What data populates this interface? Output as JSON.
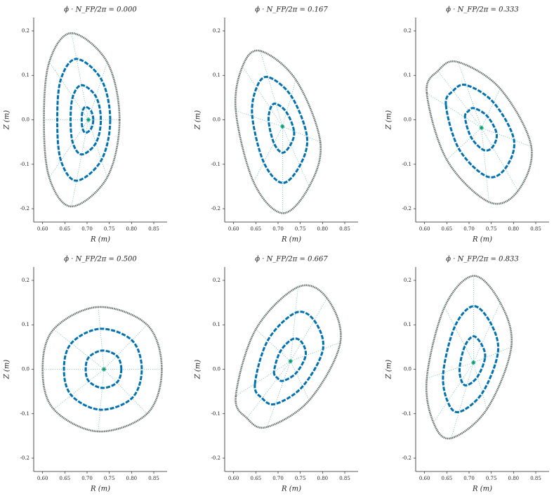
{
  "chart_data": [
    {
      "type": "poincare",
      "title": "ϕ · N_FP/2π = 0.000",
      "x_label": "R (m)",
      "y_label": "Z (m)",
      "xlim": [
        0.58,
        0.88
      ],
      "ylim": [
        -0.23,
        0.23
      ],
      "xticks": [
        {
          "value": 0.6,
          "label": "0.60"
        },
        0.65,
        {
          "value": 0.7,
          "label": "0.70"
        },
        0.75,
        {
          "value": 0.8,
          "label": "0.80"
        },
        0.85
      ],
      "yticks": [
        -0.2,
        -0.1,
        {
          "value": 0,
          "label": "0.0"
        },
        0.1,
        0.2
      ],
      "surfaces": [
        {
          "color": "#5e6a64",
          "x": [
            0.773,
            0.745,
            0.665,
            0.615,
            0.603,
            0.615,
            0.665,
            0.745
          ],
          "y": [
            0,
            0.13,
            0.195,
            0.13,
            0,
            -0.13,
            -0.195,
            -0.13
          ]
        },
        {
          "color": "#0072b2",
          "x": [
            0.752,
            0.732,
            0.676,
            0.641,
            0.633,
            0.641,
            0.676,
            0.732
          ],
          "y": [
            0,
            0.091,
            0.137,
            0.091,
            0,
            -0.091,
            -0.137,
            -0.091
          ]
        },
        {
          "color": "#0072b2",
          "x": [
            0.731,
            0.72,
            0.688,
            0.668,
            0.663,
            0.668,
            0.688,
            0.72
          ],
          "y": [
            0,
            0.052,
            0.078,
            0.052,
            0,
            -0.052,
            -0.078,
            -0.052
          ]
        },
        {
          "color": "#0072b2",
          "x": [
            0.714,
            0.709,
            0.697,
            0.69,
            0.688,
            0.69,
            0.697,
            0.709
          ],
          "y": [
            0,
            0.02,
            0.029,
            0.02,
            0,
            -0.02,
            -0.029,
            -0.02
          ]
        }
      ],
      "axis": {
        "color": "#009e73",
        "x": 0.703,
        "y": 0
      }
    },
    {
      "type": "poincare",
      "title": "ϕ · N_FP/2π = 0.167",
      "x_label": "R (m)",
      "y_label": "Z (m)",
      "xlim": [
        0.58,
        0.88
      ],
      "ylim": [
        -0.23,
        0.23
      ],
      "xticks": [
        {
          "value": 0.6,
          "label": "0.60"
        },
        0.65,
        {
          "value": 0.7,
          "label": "0.70"
        },
        0.75,
        {
          "value": 0.8,
          "label": "0.80"
        },
        0.85
      ],
      "yticks": [
        -0.2,
        -0.1,
        {
          "value": 0,
          "label": "0.0"
        },
        0.1,
        0.2
      ],
      "surfaces": [
        {
          "color": "#5e6a64",
          "x": [
            0.795,
            0.77,
            0.71,
            0.645,
            0.605,
            0.62,
            0.66,
            0.74
          ],
          "y": [
            -0.05,
            -0.15,
            -0.21,
            -0.14,
            0.02,
            0.12,
            0.155,
            0.09
          ]
        },
        {
          "color": "#0072b2",
          "x": [
            0.765,
            0.749,
            0.71,
            0.668,
            0.642,
            0.652,
            0.678,
            0.73
          ],
          "y": [
            -0.038,
            -0.103,
            -0.142,
            -0.096,
            0.008,
            0.073,
            0.096,
            0.053
          ]
        },
        {
          "color": "#0072b2",
          "x": [
            0.736,
            0.728,
            0.71,
            0.691,
            0.679,
            0.683,
            0.695,
            0.719
          ],
          "y": [
            -0.026,
            -0.056,
            -0.074,
            -0.053,
            -0.005,
            0.026,
            0.036,
            0.017
          ]
        }
      ],
      "axis": {
        "color": "#009e73",
        "x": 0.71,
        "y": -0.015
      }
    },
    {
      "type": "poincare",
      "title": "ϕ · N_FP/2π = 0.333",
      "x_label": "R (m)",
      "y_label": "Z (m)",
      "xlim": [
        0.58,
        0.88
      ],
      "ylim": [
        -0.23,
        0.23
      ],
      "xticks": [
        {
          "value": 0.6,
          "label": "0.60"
        },
        0.65,
        {
          "value": 0.7,
          "label": "0.70"
        },
        0.75,
        {
          "value": 0.8,
          "label": "0.80"
        },
        0.85
      ],
      "yticks": [
        -0.2,
        -0.1,
        {
          "value": 0,
          "label": "0.0"
        },
        0.1,
        0.2
      ],
      "surfaces": [
        {
          "color": "#5e6a64",
          "x": [
            0.605,
            0.63,
            0.675,
            0.77,
            0.84,
            0.81,
            0.745,
            0.65
          ],
          "y": [
            0.06,
            0.11,
            0.13,
            0.07,
            -0.06,
            -0.16,
            -0.185,
            -0.09
          ]
        },
        {
          "color": "#0072b2",
          "x": [
            0.648,
            0.664,
            0.694,
            0.755,
            0.801,
            0.781,
            0.739,
            0.677
          ],
          "y": [
            0.033,
            0.065,
            0.078,
            0.039,
            -0.045,
            -0.11,
            -0.127,
            -0.065
          ]
        },
        {
          "color": "#0072b2",
          "x": [
            0.691,
            0.699,
            0.712,
            0.741,
            0.762,
            0.753,
            0.733,
            0.705
          ],
          "y": [
            0.005,
            0.02,
            0.026,
            0.008,
            -0.031,
            -0.061,
            -0.068,
            -0.04
          ]
        }
      ],
      "axis": {
        "color": "#009e73",
        "x": 0.728,
        "y": -0.018
      }
    },
    {
      "type": "poincare",
      "title": "ϕ · N_FP/2π = 0.500",
      "x_label": "R (m)",
      "y_label": "Z (m)",
      "xlim": [
        0.58,
        0.88
      ],
      "ylim": [
        -0.23,
        0.23
      ],
      "xticks": [
        {
          "value": 0.6,
          "label": "0.60"
        },
        0.65,
        {
          "value": 0.7,
          "label": "0.70"
        },
        0.75,
        {
          "value": 0.8,
          "label": "0.80"
        },
        0.85
      ],
      "yticks": [
        -0.2,
        -0.1,
        {
          "value": 0,
          "label": "0.0"
        },
        0.1,
        0.2
      ],
      "surfaces": [
        {
          "color": "#5e6a64",
          "x": [
            0.868,
            0.835,
            0.725,
            0.625,
            0.6,
            0.625,
            0.725,
            0.835
          ],
          "y": [
            0,
            0.1,
            0.14,
            0.09,
            0,
            -0.09,
            -0.14,
            -0.1
          ]
        },
        {
          "color": "#0072b2",
          "x": [
            0.823,
            0.801,
            0.73,
            0.665,
            0.648,
            0.665,
            0.73,
            0.801
          ],
          "y": [
            0,
            0.065,
            0.091,
            0.059,
            0,
            -0.059,
            -0.091,
            -0.065
          ]
        },
        {
          "color": "#0072b2",
          "x": [
            0.777,
            0.767,
            0.734,
            0.704,
            0.697,
            0.704,
            0.734,
            0.767
          ],
          "y": [
            0,
            0.03,
            0.042,
            0.027,
            0,
            -0.027,
            -0.042,
            -0.03
          ]
        }
      ],
      "axis": {
        "color": "#009e73",
        "x": 0.738,
        "y": 0
      }
    },
    {
      "type": "poincare",
      "title": "ϕ · N_FP/2π = 0.667",
      "x_label": "R (m)",
      "y_label": "Z (m)",
      "xlim": [
        0.58,
        0.88
      ],
      "ylim": [
        -0.23,
        0.23
      ],
      "xticks": [
        {
          "value": 0.6,
          "label": "0.60"
        },
        0.65,
        {
          "value": 0.7,
          "label": "0.70"
        },
        0.75,
        {
          "value": 0.8,
          "label": "0.80"
        },
        0.85
      ],
      "yticks": [
        -0.2,
        -0.1,
        {
          "value": 0,
          "label": "0.0"
        },
        0.1,
        0.2
      ],
      "surfaces": [
        {
          "color": "#5e6a64",
          "x": [
            0.605,
            0.63,
            0.675,
            0.77,
            0.84,
            0.81,
            0.745,
            0.65
          ],
          "y": [
            -0.06,
            -0.11,
            -0.13,
            -0.07,
            0.06,
            0.16,
            0.185,
            0.09
          ]
        },
        {
          "color": "#0072b2",
          "x": [
            0.648,
            0.664,
            0.694,
            0.755,
            0.801,
            0.781,
            0.739,
            0.677
          ],
          "y": [
            -0.033,
            -0.065,
            -0.078,
            -0.039,
            0.045,
            0.11,
            0.127,
            0.065
          ]
        },
        {
          "color": "#0072b2",
          "x": [
            0.691,
            0.699,
            0.712,
            0.741,
            0.762,
            0.753,
            0.733,
            0.705
          ],
          "y": [
            -0.005,
            -0.02,
            -0.026,
            -0.008,
            0.031,
            0.061,
            0.068,
            0.04
          ]
        }
      ],
      "axis": {
        "color": "#009e73",
        "x": 0.728,
        "y": 0.018
      }
    },
    {
      "type": "poincare",
      "title": "ϕ · N_FP/2π = 0.833",
      "x_label": "R (m)",
      "y_label": "Z (m)",
      "xlim": [
        0.58,
        0.88
      ],
      "ylim": [
        -0.23,
        0.23
      ],
      "xticks": [
        {
          "value": 0.6,
          "label": "0.60"
        },
        0.65,
        {
          "value": 0.7,
          "label": "0.70"
        },
        0.75,
        {
          "value": 0.8,
          "label": "0.80"
        },
        0.85
      ],
      "yticks": [
        -0.2,
        -0.1,
        {
          "value": 0,
          "label": "0.0"
        },
        0.1,
        0.2
      ],
      "surfaces": [
        {
          "color": "#5e6a64",
          "x": [
            0.795,
            0.77,
            0.71,
            0.645,
            0.605,
            0.62,
            0.66,
            0.74
          ],
          "y": [
            0.05,
            0.15,
            0.21,
            0.14,
            -0.02,
            -0.12,
            -0.155,
            -0.09
          ]
        },
        {
          "color": "#0072b2",
          "x": [
            0.765,
            0.749,
            0.71,
            0.668,
            0.642,
            0.652,
            0.678,
            0.73
          ],
          "y": [
            0.038,
            0.103,
            0.142,
            0.096,
            -0.008,
            -0.073,
            -0.096,
            -0.053
          ]
        },
        {
          "color": "#0072b2",
          "x": [
            0.736,
            0.728,
            0.71,
            0.691,
            0.679,
            0.683,
            0.695,
            0.719
          ],
          "y": [
            0.026,
            0.056,
            0.074,
            0.053,
            0.005,
            -0.026,
            -0.036,
            -0.017
          ]
        }
      ],
      "axis": {
        "color": "#009e73",
        "x": 0.71,
        "y": 0.015
      }
    }
  ]
}
